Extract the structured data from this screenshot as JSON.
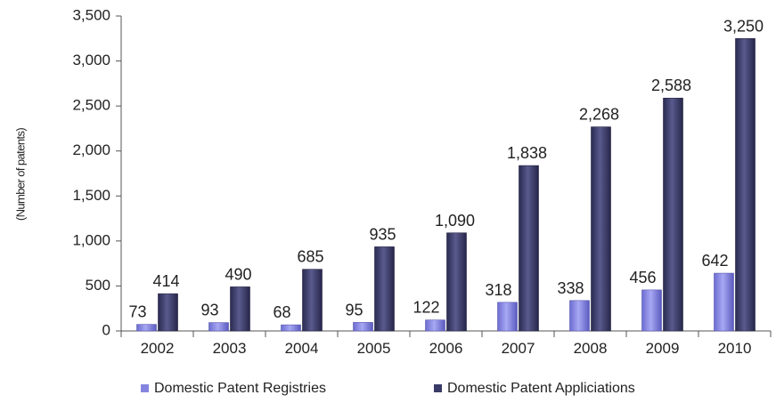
{
  "chart_data": {
    "type": "bar",
    "ylabel": "(Number of patents)",
    "ylim": [
      0,
      3500
    ],
    "yticks": [
      0,
      500,
      1000,
      1500,
      2000,
      2500,
      3000,
      3500
    ],
    "ytick_labels": [
      "0",
      "500",
      "1,000",
      "1,500",
      "2,000",
      "2,500",
      "3,000",
      "3,500"
    ],
    "categories": [
      "2002",
      "2003",
      "2004",
      "2005",
      "2006",
      "2007",
      "2008",
      "2009",
      "2010"
    ],
    "series": [
      {
        "name": "Domestic Patent Registries",
        "values": [
          73,
          93,
          68,
          95,
          122,
          318,
          338,
          456,
          642
        ],
        "labels": [
          "73",
          "93",
          "68",
          "95",
          "122",
          "318",
          "338",
          "456",
          "642"
        ],
        "color": "#8585e0"
      },
      {
        "name": "Domestic Patent Appliciations",
        "values": [
          414,
          490,
          685,
          935,
          1090,
          1838,
          2268,
          2588,
          3250
        ],
        "labels": [
          "414",
          "490",
          "685",
          "935",
          "1,090",
          "1,838",
          "2,268",
          "2,588",
          "3,250"
        ],
        "color": "#3a3a68"
      }
    ],
    "grid": false,
    "legend": "bottom"
  }
}
